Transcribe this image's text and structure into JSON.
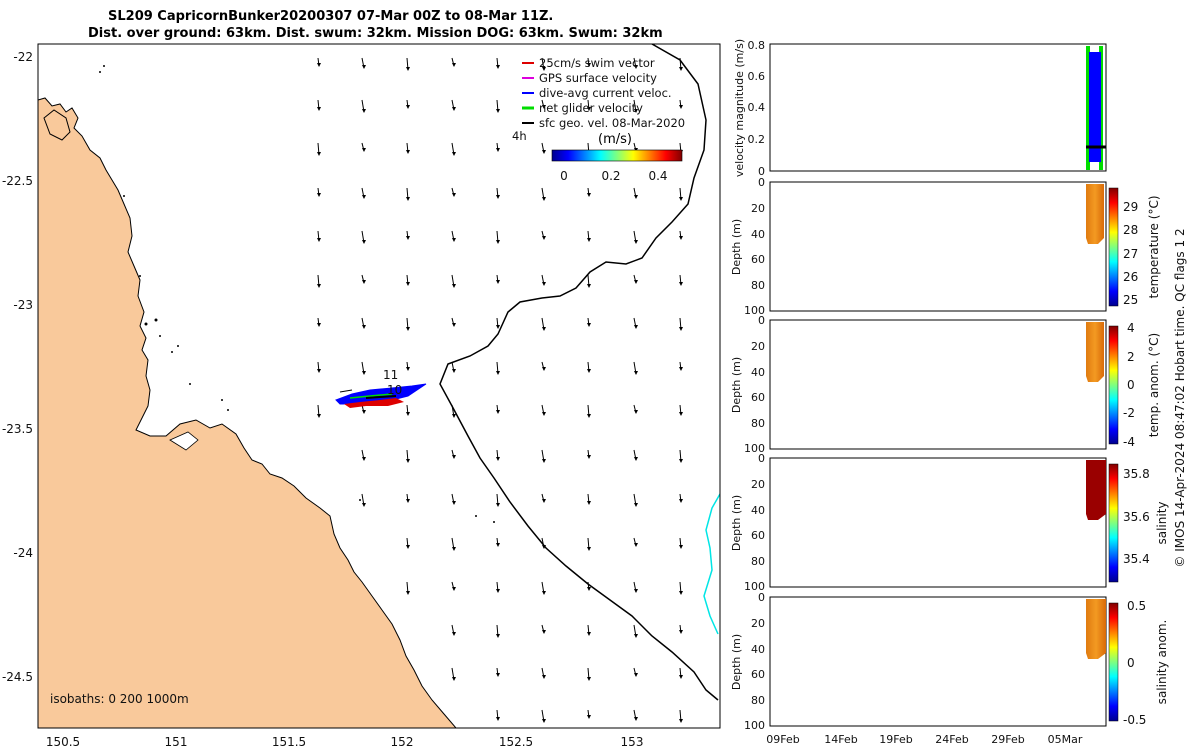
{
  "title": {
    "line1": "SL209 CapricornBunker20200307 07-Mar 00Z to 08-Mar 11Z.",
    "line2": "Dist. over ground: 63km. Dist. swum: 32km. Mission DOG: 63km. Swum: 32km"
  },
  "map": {
    "lon_ticks": [
      "150.5",
      "151",
      "151.5",
      "152",
      "152.5",
      "153"
    ],
    "lat_ticks": [
      "-22",
      "-22.5",
      "-23",
      "-23.5",
      "-24",
      "-24.5"
    ],
    "legend": [
      {
        "label": "25cm/s swim vector",
        "color": "#dd0000"
      },
      {
        "label": "GPS surface velocity",
        "color": "#dd00dd"
      },
      {
        "label": "dive-avg current veloc.",
        "color": "#0000ff"
      },
      {
        "label": "net glider velocity",
        "color": "#00dd00"
      },
      {
        "label": "sfc geo. vel. 08-Mar-2020",
        "color": "#000000"
      }
    ],
    "legend_note": "4h",
    "colorbar": {
      "title": "(m/s)",
      "ticks": [
        "0",
        "0.2",
        "0.4"
      ],
      "range": [
        -0.05,
        0.5
      ]
    },
    "track_labels": [
      "11",
      "10"
    ],
    "isobaths_note": "isobaths: 0   200  1000m",
    "colors": {
      "land": "#f9c99b",
      "coast": "#000000",
      "isobath_1000": "#00e5e5"
    }
  },
  "panels": {
    "velocity": {
      "ylabel": "velocity magnitude (m/s)",
      "ticks": [
        "0",
        "0.2",
        "0.4",
        "0.6",
        "0.8"
      ]
    },
    "temperature": {
      "ylabel": "Depth (m)",
      "cbar_label": "temperature (°C)",
      "depth_ticks": [
        "0",
        "20",
        "40",
        "60",
        "80",
        "100"
      ],
      "cbar_ticks": [
        "25",
        "26",
        "27",
        "28",
        "29"
      ]
    },
    "temp_anom": {
      "ylabel": "Depth (m)",
      "cbar_label": "temp. anom. (°C)",
      "depth_ticks": [
        "0",
        "20",
        "40",
        "60",
        "80",
        "100"
      ],
      "cbar_ticks": [
        "-4",
        "-2",
        "0",
        "2",
        "4"
      ]
    },
    "salinity": {
      "ylabel": "Depth (m)",
      "cbar_label": "salinity",
      "depth_ticks": [
        "0",
        "20",
        "40",
        "60",
        "80",
        "100"
      ],
      "cbar_ticks": [
        "35.4",
        "35.6",
        "35.8"
      ]
    },
    "sal_anom": {
      "ylabel": "Depth (m)",
      "cbar_label": "salinity anom.",
      "depth_ticks": [
        "0",
        "20",
        "40",
        "60",
        "80",
        "100"
      ],
      "cbar_ticks": [
        "-0.5",
        "0",
        "0.5"
      ]
    },
    "time_ticks": [
      "09Feb",
      "14Feb",
      "19Feb",
      "24Feb",
      "29Feb",
      "05Mar"
    ]
  },
  "footer": "© IMOS 14-Apr-2024 08:47:02 Hobart time. QC flags 1  2"
}
